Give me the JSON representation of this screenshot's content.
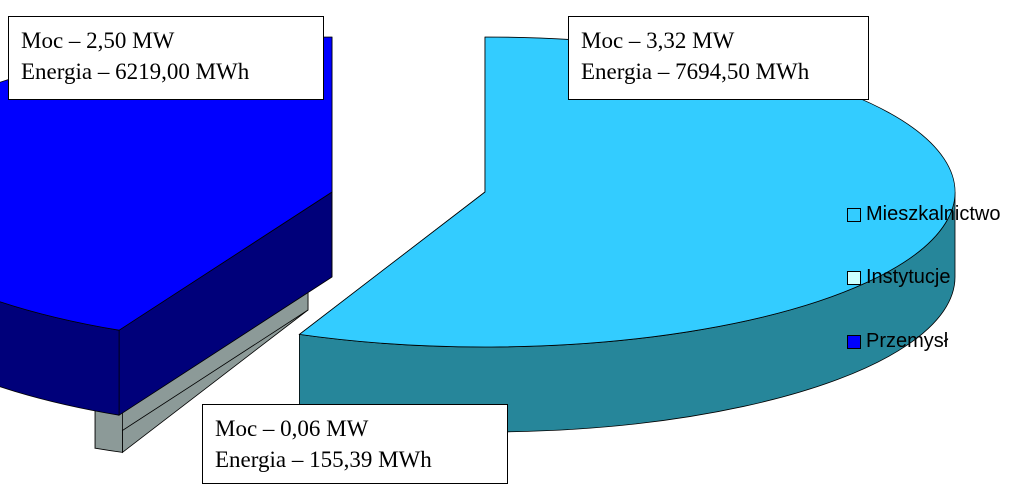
{
  "chart_data": {
    "type": "pie",
    "three_d": true,
    "exploded": true,
    "title": "",
    "categories": [
      "Mieszkalnictwo",
      "Instytucje",
      "Przemysł"
    ],
    "values": [
      3.32,
      0.06,
      2.5
    ],
    "series": [
      {
        "name": "Moc",
        "unit": "MW",
        "values": [
          3.32,
          0.06,
          2.5
        ]
      },
      {
        "name": "Energia",
        "unit": "MWh",
        "values": [
          7694.5,
          155.39,
          6219.0
        ]
      }
    ],
    "colors": [
      "#33ccff",
      "#ccffff",
      "#0000ff"
    ],
    "side_colors": [
      "#26869a",
      "#8c9a98",
      "#00007a"
    ],
    "legend": {
      "position": "right",
      "items": [
        "Mieszkalnictwo",
        "Instytucje",
        "Przemysł"
      ]
    },
    "annotations": [
      {
        "moc": "Moc – 3,32 MW",
        "energia": "Energia – 7694,50 MWh"
      },
      {
        "moc": "Moc – 0,06 MW",
        "energia": "Energia – 155,39 MWh"
      },
      {
        "moc": "Moc – 2,50 MW",
        "energia": "Energia – 6219,00 MWh"
      }
    ]
  }
}
